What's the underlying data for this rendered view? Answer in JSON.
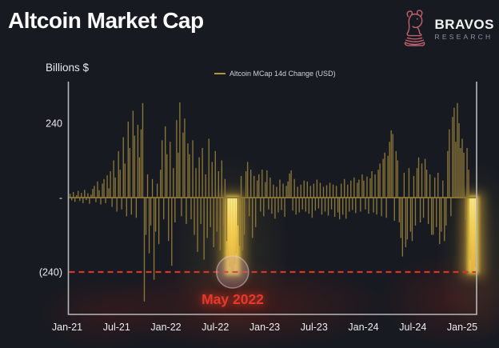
{
  "header": {
    "title": "Altcoin Market Cap",
    "brand": {
      "name": "BRAVOS",
      "sub": "RESEARCH"
    }
  },
  "chart_data": {
    "type": "bar",
    "legend": "Altcoin MCap 14d Change (USD)",
    "ylabel": "Billions $",
    "x_ticks": [
      "Jan-21",
      "Jul-21",
      "Jan-22",
      "Jul-22",
      "Jan-23",
      "Jul-23",
      "Jan-24",
      "Jul-24",
      "Jan-25"
    ],
    "y_ticks": [
      {
        "label": "240",
        "value": 240
      },
      {
        "label": "-",
        "value": 0
      },
      {
        "label": "(240)",
        "value": -240
      }
    ],
    "ylim": [
      -377,
      375
    ],
    "grid": false,
    "legend_position": "top-center",
    "values": [
      12,
      -9,
      18,
      -14,
      8,
      22,
      -11,
      15,
      -18,
      25,
      -8,
      14,
      -20,
      10,
      28,
      38,
      -15,
      52,
      24,
      -22,
      45,
      60,
      -18,
      72,
      30,
      85,
      -30,
      120,
      65,
      -45,
      150,
      90,
      -38,
      195,
      110,
      -60,
      245,
      160,
      -55,
      280,
      200,
      -65,
      235,
      130,
      220,
      305,
      -335,
      -120,
      75,
      -180,
      -90,
      60,
      -265,
      -110,
      45,
      -150,
      90,
      185,
      -70,
      230,
      140,
      -140,
      180,
      -220,
      95,
      -80,
      250,
      145,
      307,
      -60,
      210,
      255,
      -85,
      175,
      140,
      -70,
      185,
      -120,
      95,
      -175,
      130,
      -85,
      160,
      -200,
      75,
      -130,
      190,
      -95,
      115,
      -160,
      150,
      -110,
      85,
      -170,
      120,
      -90,
      60,
      -140,
      -200,
      -225,
      -245,
      -235,
      -215,
      -180,
      -90,
      -155,
      70,
      -170,
      -120,
      85,
      115,
      -60,
      90,
      -130,
      70,
      -95,
      55,
      75,
      -45,
      90,
      -60,
      50,
      88,
      -38,
      65,
      -52,
      42,
      -68,
      35,
      -48,
      58,
      -40,
      45,
      -62,
      38,
      52,
      78,
      88,
      -42,
      60,
      -55,
      35,
      -48,
      42,
      -38,
      55,
      -45,
      52,
      -52,
      38,
      -65,
      45,
      -42,
      58,
      -35,
      48,
      -55,
      35,
      -45,
      40,
      -58,
      48,
      -38,
      42,
      -62,
      38,
      -48,
      -70,
      45,
      -55,
      60,
      -68,
      42,
      -45,
      55,
      -40,
      65,
      -50,
      48,
      58,
      -45,
      75,
      55,
      -38,
      68,
      -52,
      62,
      85,
      -48,
      75,
      -55,
      90,
      110,
      -60,
      125,
      145,
      -65,
      135,
      180,
      217,
      205,
      -75,
      150,
      120,
      -80,
      -130,
      -190,
      80,
      -160,
      -135,
      95,
      -110,
      -140,
      70,
      -90,
      95,
      130,
      -80,
      110,
      -65,
      125,
      90,
      -85,
      75,
      -120,
      -120,
      65,
      -95,
      80,
      -150,
      -110,
      55,
      -140,
      -90,
      150,
      220,
      -60,
      260,
      290,
      180,
      305,
      240,
      160,
      190,
      145,
      -70,
      160,
      90,
      -200,
      -240,
      -235,
      -225
    ],
    "highlights": [
      {
        "name": "may-2022-crash",
        "start": 98,
        "end": 103
      },
      {
        "name": "latest-drop",
        "start": 248,
        "end": 251
      }
    ],
    "threshold_line": {
      "value": -240,
      "style": "dashed",
      "color": "#d63427"
    },
    "annotation": {
      "text": "May 2022",
      "color": "#e8382b",
      "circle": {
        "index": 101,
        "value": -240,
        "radius": 20
      }
    },
    "colors": {
      "bar": "#8c7638",
      "bright_top": "#fff3a0",
      "bright_mid": "#f6d257",
      "bright_bottom": "#e0a93c",
      "axis": "#b5b8bd",
      "tick_text": "#ececec",
      "background": "#171a21",
      "legend_dash": "#b9952f"
    }
  }
}
